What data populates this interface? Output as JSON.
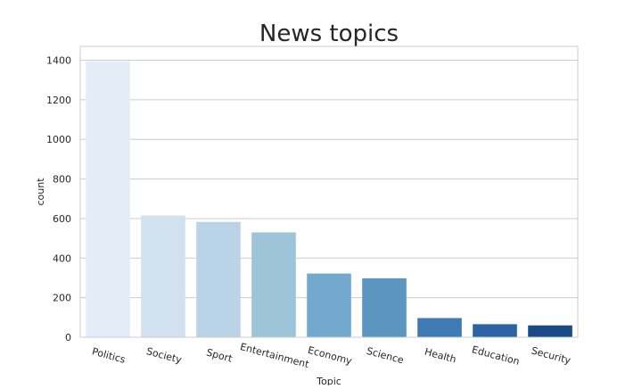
{
  "chart_data": {
    "type": "bar",
    "title": "News topics",
    "xlabel": "Topic",
    "ylabel": "count",
    "categories": [
      "Politics",
      "Society",
      "Sport",
      "Entertainment",
      "Economy",
      "Science",
      "Health",
      "Education",
      "Security"
    ],
    "values": [
      1395,
      615,
      583,
      530,
      322,
      298,
      97,
      66,
      60
    ],
    "ylim": [
      0,
      1470
    ],
    "yticks": [
      0,
      200,
      400,
      600,
      800,
      1000,
      1200,
      1400
    ],
    "grid": true,
    "colors": [
      "#e4edf7",
      "#d1e1f0",
      "#bad3e6",
      "#9dc4d9",
      "#74a9cf",
      "#5a96c0",
      "#3e7ab4",
      "#2b63a3",
      "#1b4b87"
    ]
  }
}
